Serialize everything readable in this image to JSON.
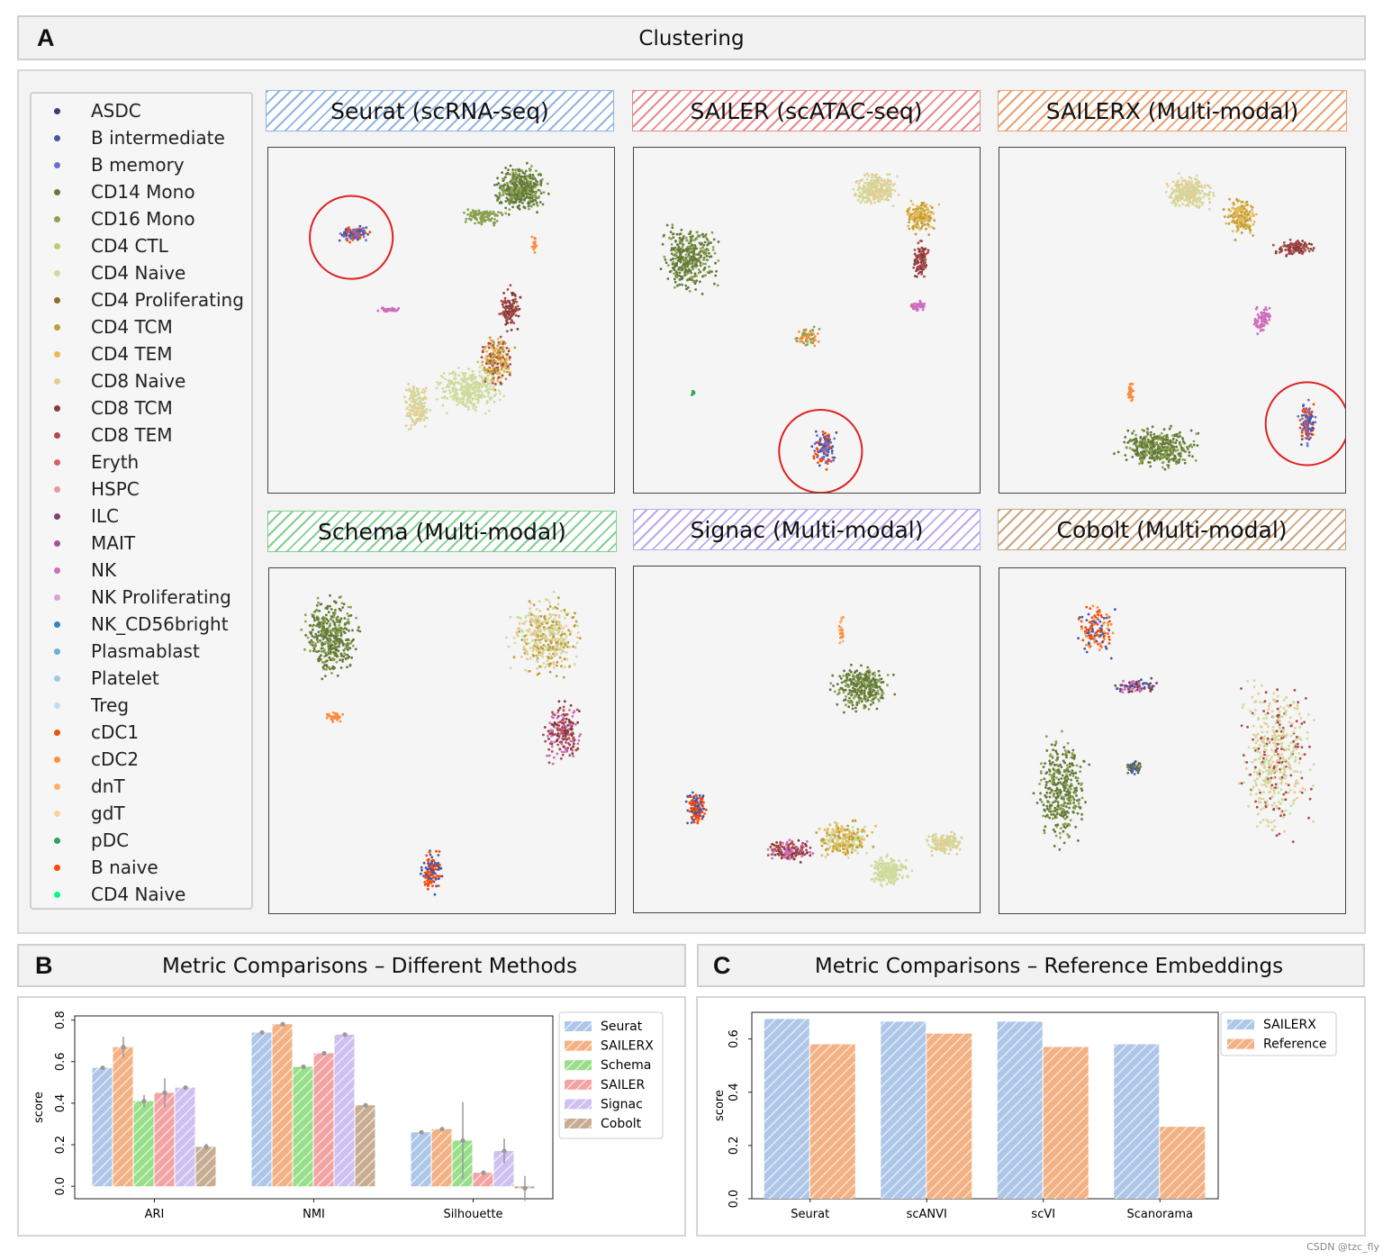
{
  "panels": {
    "a": {
      "letter": "A",
      "title": "Clustering"
    },
    "b": {
      "letter": "B",
      "title": "Metric Comparisons – Different Methods"
    },
    "c": {
      "letter": "C",
      "title": "Metric Comparisons – Reference Embeddings"
    }
  },
  "legend": [
    {
      "label": "ASDC",
      "color": "#3b3b7a"
    },
    {
      "label": "B intermediate",
      "color": "#4a55a2"
    },
    {
      "label": "B memory",
      "color": "#6a6fcf"
    },
    {
      "label": "CD14 Mono",
      "color": "#637939"
    },
    {
      "label": "CD16 Mono",
      "color": "#8ca252"
    },
    {
      "label": "CD4 CTL",
      "color": "#b5cf6b"
    },
    {
      "label": "CD4 Naive",
      "color": "#cedb9c"
    },
    {
      "label": "CD4 Proliferating",
      "color": "#8c6d31"
    },
    {
      "label": "CD4 TCM",
      "color": "#bd9e39"
    },
    {
      "label": "CD4 TEM",
      "color": "#e7ba52"
    },
    {
      "label": "CD8 Naive",
      "color": "#e7cb94"
    },
    {
      "label": "CD8 TCM",
      "color": "#843c39"
    },
    {
      "label": "CD8 TEM",
      "color": "#ad494a"
    },
    {
      "label": "Eryth",
      "color": "#d6616b"
    },
    {
      "label": "HSPC",
      "color": "#e7969c"
    },
    {
      "label": "ILC",
      "color": "#7b4173"
    },
    {
      "label": "MAIT",
      "color": "#a55194"
    },
    {
      "label": "NK",
      "color": "#ce6dbd"
    },
    {
      "label": "NK Proliferating",
      "color": "#de9ed6"
    },
    {
      "label": "NK_CD56bright",
      "color": "#3182bd"
    },
    {
      "label": "Plasmablast",
      "color": "#6baed6"
    },
    {
      "label": "Platelet",
      "color": "#9ecae1"
    },
    {
      "label": "Treg",
      "color": "#c6dbef"
    },
    {
      "label": "cDC1",
      "color": "#e6550d"
    },
    {
      "label": "cDC2",
      "color": "#fd8d3c"
    },
    {
      "label": "dnT",
      "color": "#fdae6b"
    },
    {
      "label": "gdT",
      "color": "#fdd0a2"
    },
    {
      "label": "pDC",
      "color": "#31a354"
    },
    {
      "label": "B naive",
      "color": "#ff4500"
    },
    {
      "label": "CD4 Naive",
      "color": "#00ff7f"
    }
  ],
  "methods": [
    {
      "title": "Seurat (scRNA-seq)",
      "color": "#8fb4e3"
    },
    {
      "title": "SAILER (scATAC-seq)",
      "color": "#e98a8a"
    },
    {
      "title": "SAILERX (Multi-modal)",
      "color": "#e9a070"
    },
    {
      "title": "Schema (Multi-modal)",
      "color": "#80cf90"
    },
    {
      "title": "Signac (Multi-modal)",
      "color": "#b9a8ef"
    },
    {
      "title": "Cobolt (Multi-modal)",
      "color": "#c9a57f"
    }
  ],
  "chart_data": [
    {
      "type": "bar",
      "title": "Metric Comparisons – Different Methods",
      "ylabel": "score",
      "xlabel": "",
      "ylim": [
        -0.06,
        0.82
      ],
      "yticks": [
        "0.0",
        "0.2",
        "0.4",
        "0.6",
        "0.8"
      ],
      "categories": [
        "ARI",
        "NMI",
        "Silhouette"
      ],
      "series": [
        {
          "name": "Seurat",
          "color": "#aec7e8",
          "values": [
            0.57,
            0.74,
            0.26
          ],
          "err": [
            0.01,
            0.005,
            0.005
          ]
        },
        {
          "name": "SAILERX",
          "color": "#f4b183",
          "values": [
            0.67,
            0.78,
            0.275
          ],
          "err": [
            0.05,
            0.005,
            0.005
          ]
        },
        {
          "name": "Schema",
          "color": "#98df8a",
          "values": [
            0.41,
            0.575,
            0.22
          ],
          "err": [
            0.03,
            0.005,
            0.185
          ]
        },
        {
          "name": "SAILER",
          "color": "#f4a3a3",
          "values": [
            0.45,
            0.64,
            0.065
          ],
          "err": [
            0.07,
            0.01,
            0.01
          ]
        },
        {
          "name": "Signac",
          "color": "#cfc0f2",
          "values": [
            0.475,
            0.73,
            0.17
          ],
          "err": [
            0.005,
            0.005,
            0.06
          ]
        },
        {
          "name": "Cobolt",
          "color": "#c8ad93",
          "values": [
            0.19,
            0.39,
            -0.01
          ],
          "err": [
            0.015,
            0.005,
            0.06
          ]
        }
      ]
    },
    {
      "type": "bar",
      "title": "Metric Comparisons – Reference Embeddings",
      "ylabel": "score",
      "xlabel": "",
      "ylim": [
        0,
        0.7
      ],
      "yticks": [
        "0.0",
        "0.2",
        "0.4",
        "0.6"
      ],
      "categories": [
        "Seurat",
        "scANVI",
        "scVI",
        "Scanorama"
      ],
      "series": [
        {
          "name": "SAILERX",
          "color": "#aec7e8",
          "values": [
            0.675,
            0.665,
            0.665,
            0.58
          ]
        },
        {
          "name": "Reference",
          "color": "#f4b183",
          "values": [
            0.58,
            0.62,
            0.57,
            0.27
          ]
        }
      ]
    }
  ],
  "watermark": "CSDN @tzc_fly"
}
